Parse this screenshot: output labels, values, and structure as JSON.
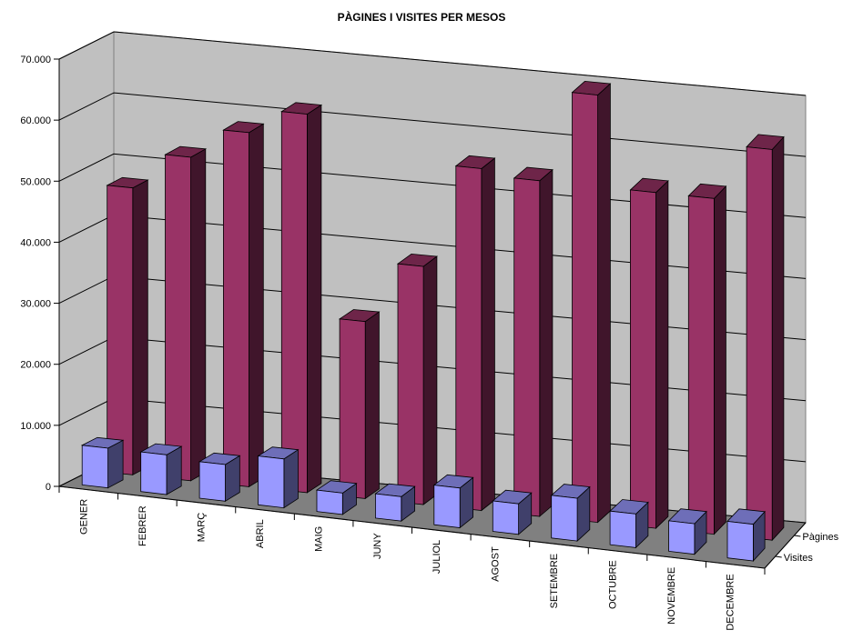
{
  "chart_data": {
    "type": "bar",
    "title": "PÀGINES I VISITES PER MESOS",
    "categories": [
      "GENER",
      "FEBRER",
      "MARÇ",
      "ABRIL",
      "MAIG",
      "JUNY",
      "JULIOL",
      "AGOST",
      "SETEMBRE",
      "OCTUBRE",
      "NOVEMBRE",
      "DECEMBRE"
    ],
    "series": [
      {
        "name": "Visites",
        "values": [
          6500,
          6500,
          6000,
          8000,
          3500,
          4000,
          6500,
          5000,
          7000,
          5500,
          5000,
          6000
        ],
        "color": "#9999ff"
      },
      {
        "name": "Pàgines",
        "values": [
          47000,
          53000,
          58000,
          62000,
          29000,
          39000,
          56000,
          55000,
          70000,
          55000,
          55000,
          64000
        ],
        "color": "#993366"
      }
    ],
    "ylim": [
      0,
      70000
    ],
    "yticks": [
      "0",
      "10.000",
      "20.000",
      "30.000",
      "40.000",
      "50.000",
      "60.000",
      "70.000"
    ],
    "grid": true,
    "legend": "right"
  }
}
